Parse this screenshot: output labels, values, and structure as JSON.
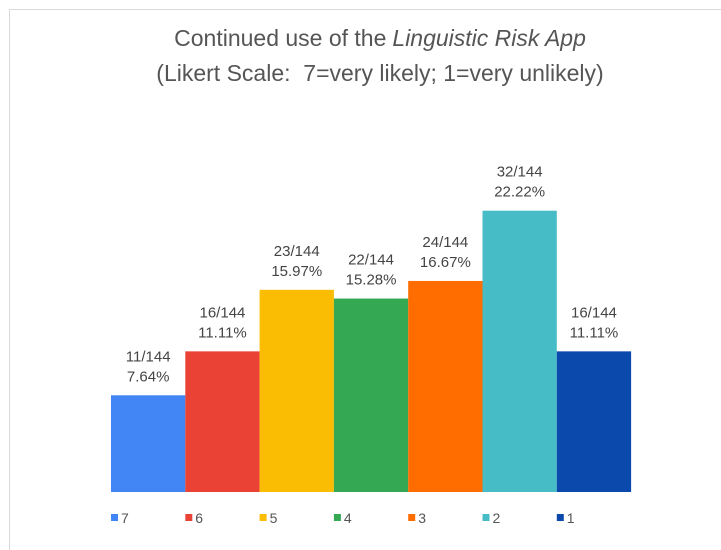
{
  "chart_data": {
    "type": "bar",
    "title": [
      "Continued use of the",
      "Linguistic Risk App"
    ],
    "subtitle": "(Likert Scale:  7=very likely; 1=very unlikely)",
    "categories": [
      "7",
      "6",
      "5",
      "4",
      "3",
      "2",
      "1"
    ],
    "values": [
      7.64,
      11.11,
      15.97,
      15.28,
      16.67,
      22.22,
      11.11
    ],
    "value_labels": [
      "7.64%",
      "11.11%",
      "15.97%",
      "15.28%",
      "16.67%",
      "22.22%",
      "11.11%"
    ],
    "count_labels": [
      "11/144",
      "16/144",
      "23/144",
      "22/144",
      "24/144",
      "32/144",
      "16/144"
    ],
    "colors": [
      "#4285f4",
      "#ea4335",
      "#fbbc04",
      "#34a853",
      "#ff6d01",
      "#46bdc6",
      "#0b49ad"
    ],
    "legend": "bottom"
  }
}
